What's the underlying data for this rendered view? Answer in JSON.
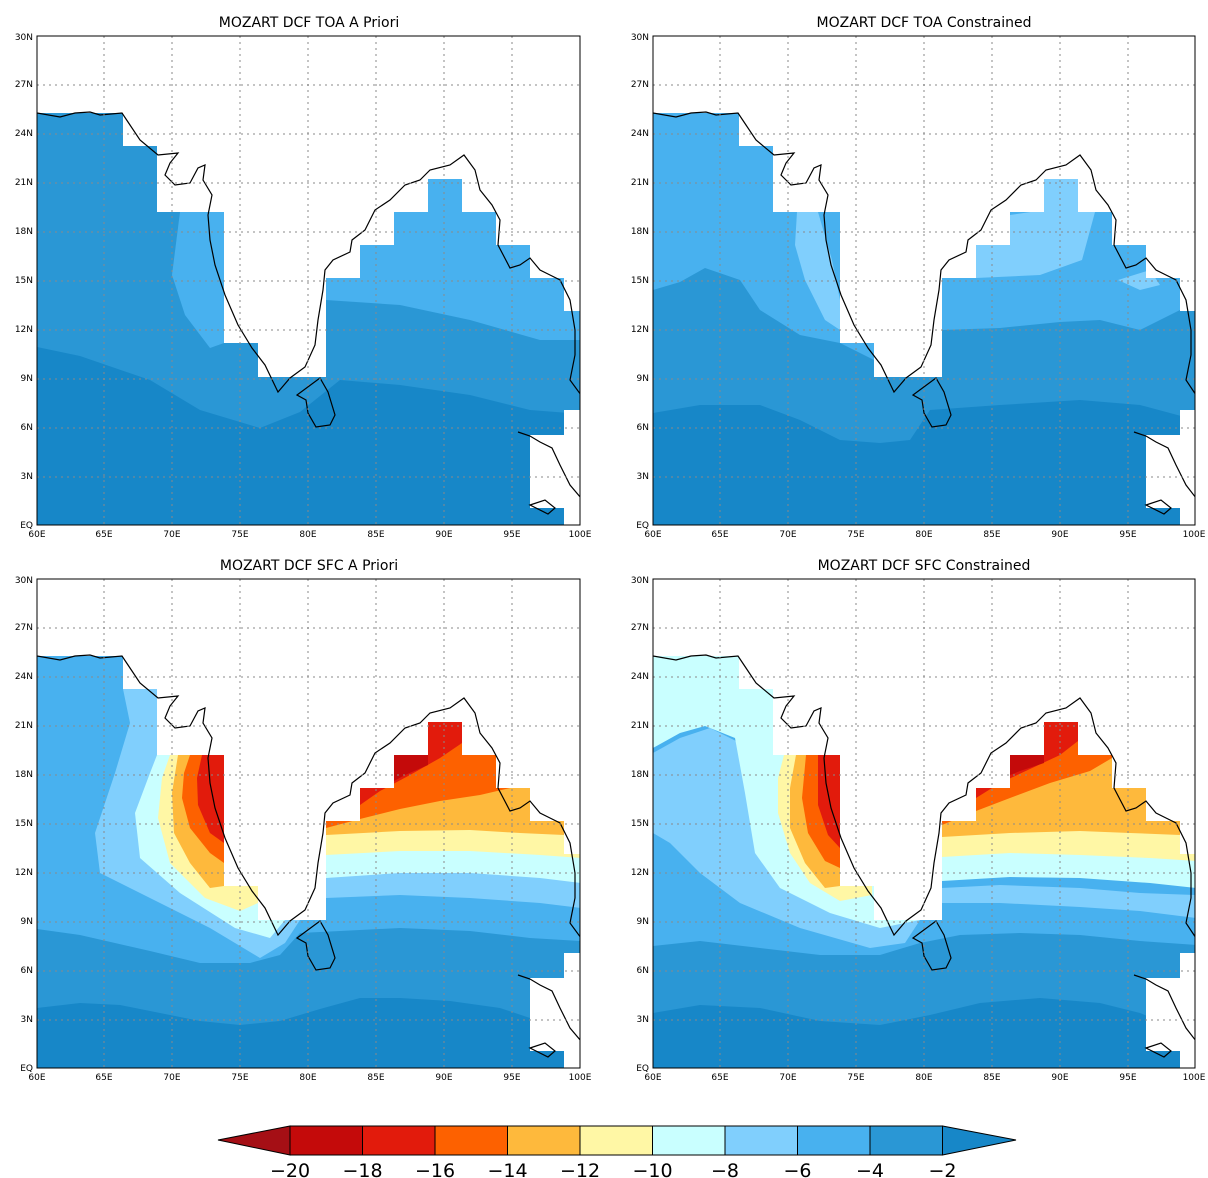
{
  "colors": {
    "land": "#ffffff",
    "coast": "#000000",
    "grid": "#8a8a8a",
    "levels": [
      "#a50f15",
      "#c40a0a",
      "#e21b0c",
      "#fd6100",
      "#feb93c",
      "#fff7a5",
      "#c9ffff",
      "#80cffd",
      "#48b1ef",
      "#2a97d5",
      "#1787c8"
    ]
  },
  "panels": [
    {
      "id": "toa-apriori",
      "title": "MOZART DCF TOA A Priori"
    },
    {
      "id": "toa-constrained",
      "title": "MOZART DCF TOA Constrained"
    },
    {
      "id": "sfc-apriori",
      "title": "MOZART DCF SFC A Priori"
    },
    {
      "id": "sfc-constrained",
      "title": "MOZART DCF SFC Constrained"
    }
  ],
  "axes": {
    "lat_labels": [
      "EQ",
      "3N",
      "6N",
      "9N",
      "12N",
      "15N",
      "18N",
      "21N",
      "24N",
      "27N",
      "30N"
    ],
    "lon_labels": [
      "60E",
      "65E",
      "70E",
      "75E",
      "80E",
      "85E",
      "90E",
      "95E",
      "100E"
    ],
    "lon_range": [
      60,
      100
    ],
    "lat_range": [
      0,
      30
    ]
  },
  "colorbar": {
    "labels": [
      "−20",
      "−18",
      "−16",
      "−14",
      "−12",
      "−10",
      "−8",
      "−6",
      "−4",
      "−2"
    ]
  }
}
